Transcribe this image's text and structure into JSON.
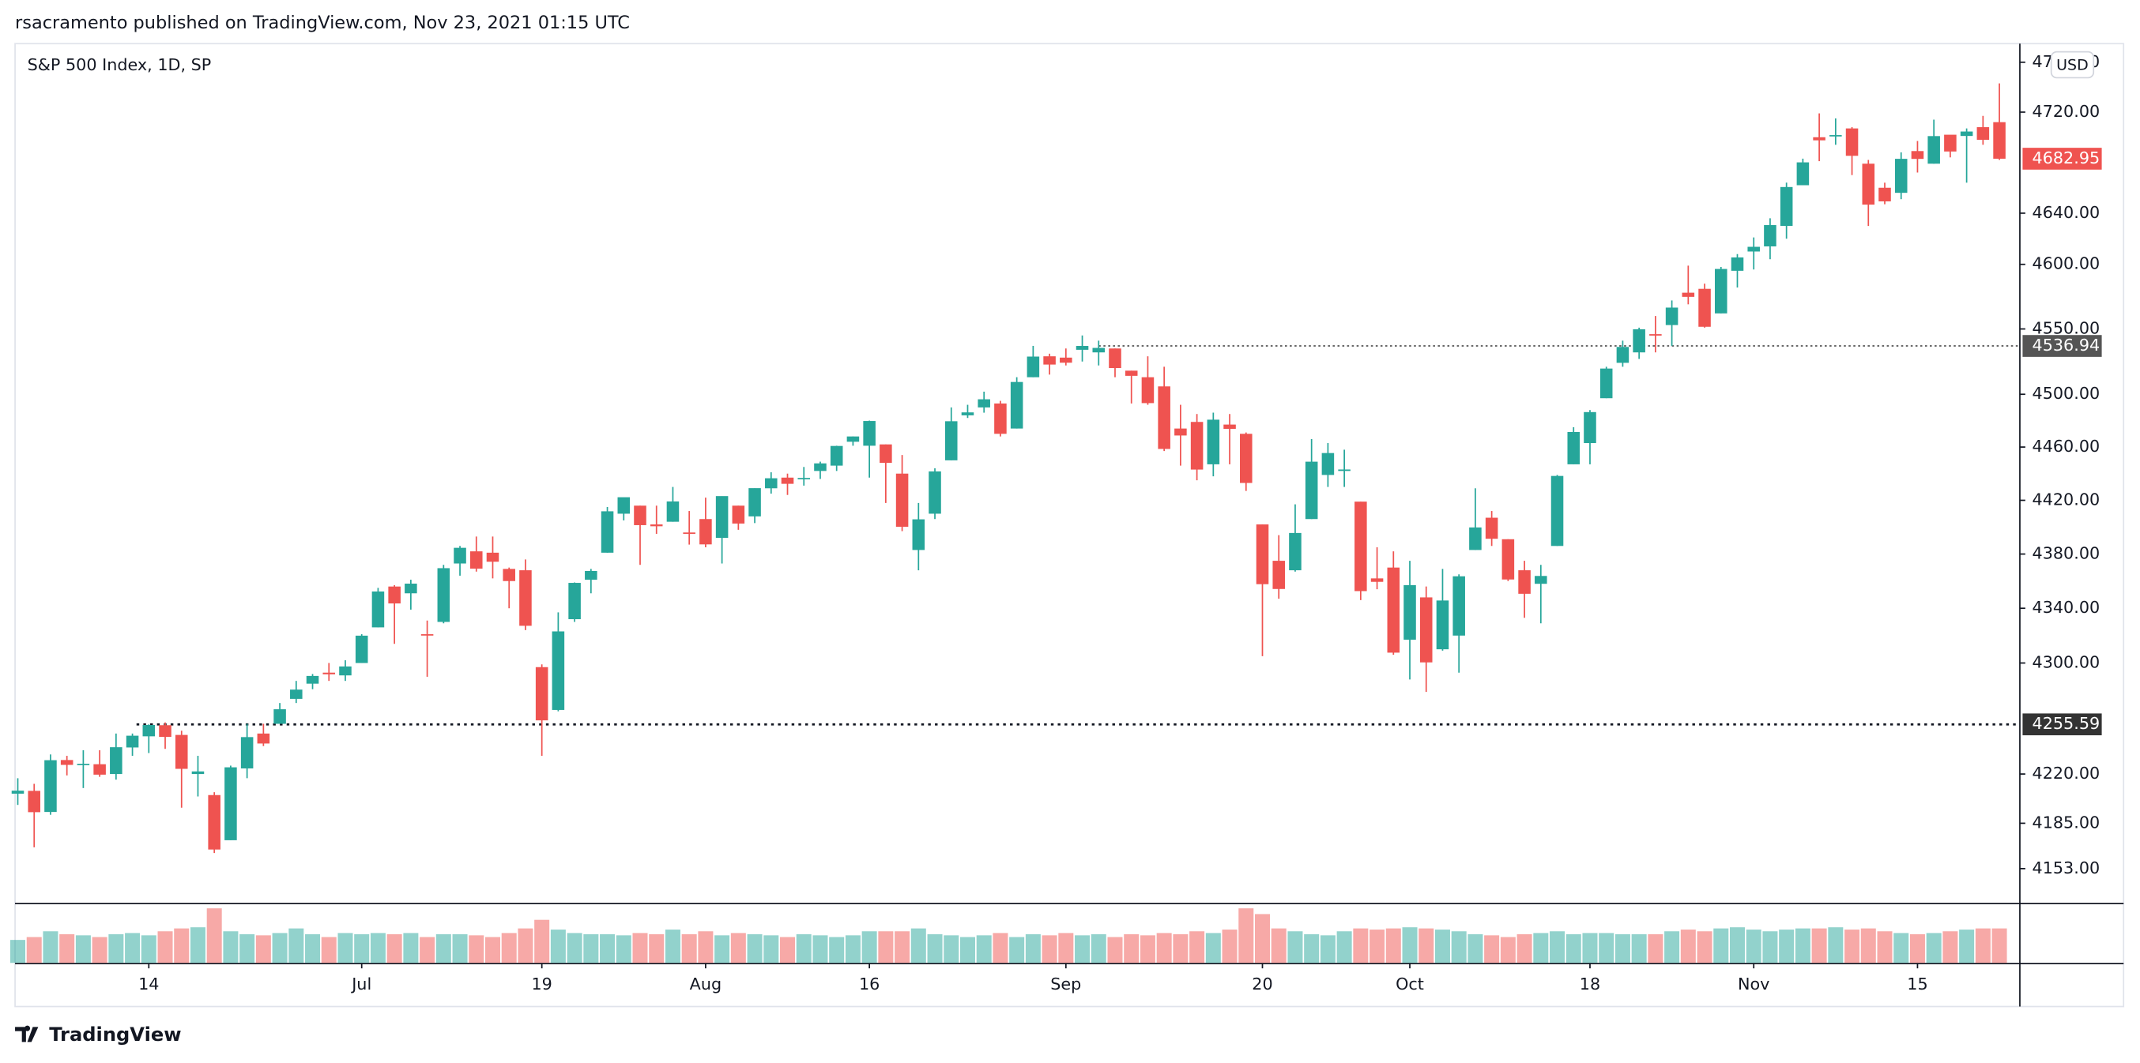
{
  "header": {
    "text": "rsacramento published on TradingView.com, Nov 23, 2021 01:15 UTC"
  },
  "footer": {
    "brand": "TradingView"
  },
  "chart_data": {
    "type": "candlestick",
    "title": "S&P 500 Index, 1D, SP",
    "currency": "USD",
    "log_scale": true,
    "up_color": "#26a69a",
    "down_color": "#ef5350",
    "ylim": [
      4129,
      4775
    ],
    "yticks": [
      {
        "value": 4760,
        "label": "4760.00"
      },
      {
        "value": 4720,
        "label": "4720.00"
      },
      {
        "value": 4640,
        "label": "4640.00"
      },
      {
        "value": 4600,
        "label": "4600.00"
      },
      {
        "value": 4550,
        "label": "4550.00"
      },
      {
        "value": 4500,
        "label": "4500.00"
      },
      {
        "value": 4460,
        "label": "4460.00"
      },
      {
        "value": 4420,
        "label": "4420.00"
      },
      {
        "value": 4380,
        "label": "4380.00"
      },
      {
        "value": 4340,
        "label": "4340.00"
      },
      {
        "value": 4300,
        "label": "4300.00"
      },
      {
        "value": 4220,
        "label": "4220.00"
      },
      {
        "value": 4185,
        "label": "4185.00"
      },
      {
        "value": 4153,
        "label": "4153.00"
      }
    ],
    "price_lines": [
      4536.94,
      4255.59
    ],
    "categories": [
      null,
      null,
      null,
      null,
      null,
      null,
      null,
      null,
      "14",
      null,
      null,
      null,
      null,
      null,
      null,
      null,
      null,
      null,
      null,
      null,
      null,
      "Jul",
      null,
      null,
      null,
      null,
      null,
      null,
      null,
      null,
      null,
      null,
      "19",
      null,
      null,
      null,
      null,
      null,
      null,
      null,
      null,
      null,
      "Aug",
      null,
      null,
      null,
      null,
      null,
      null,
      null,
      null,
      null,
      "16",
      null,
      null,
      null,
      null,
      null,
      null,
      null,
      null,
      null,
      null,
      null,
      "Sep",
      null,
      null,
      null,
      null,
      null,
      null,
      null,
      null,
      null,
      null,
      null,
      "20",
      null,
      null,
      null,
      null,
      null,
      null,
      null,
      null,
      "Oct",
      null,
      null,
      null,
      null,
      null,
      null,
      null,
      null,
      null,
      null,
      "18",
      null,
      null,
      null,
      null,
      null,
      null,
      null,
      null,
      null,
      "Nov",
      null,
      null,
      null,
      null,
      null,
      null,
      null,
      null,
      null,
      "15",
      null,
      null,
      null,
      null,
      null
    ],
    "open": [
      4206,
      4208,
      4193,
      4230,
      4227,
      4227,
      4220,
      4239,
      4247,
      4255,
      4248,
      4220,
      4205,
      4173,
      4224,
      4249,
      4256,
      4274,
      4285,
      4293,
      4291,
      4300,
      4326,
      4356,
      4351,
      4321,
      4330,
      4373,
      4382,
      4381,
      4369,
      4368,
      4297,
      4266,
      4332,
      4361,
      4381,
      4410,
      4416,
      4402,
      4404,
      4396,
      4406,
      4392,
      4416,
      4408,
      4429,
      4437,
      4436,
      4442,
      4446,
      4464,
      4461,
      4462,
      4440,
      4383,
      4410,
      4450,
      4484,
      4490,
      4493,
      4474,
      4513,
      4529,
      4528,
      4534,
      4532,
      4535,
      4518,
      4513,
      4506,
      4474,
      4479,
      4447,
      4477,
      4470,
      4402,
      4375,
      4368,
      4406,
      4439,
      4442,
      4419,
      4362,
      4370,
      4317,
      4348,
      4310,
      4320,
      4383,
      4407,
      4391,
      4368,
      4358,
      4386,
      4447,
      4463,
      4497,
      4524,
      4532,
      4546,
      4553,
      4578,
      4581,
      4562,
      4595,
      4610,
      4614,
      4630,
      4662,
      4700,
      4701,
      4707,
      4679,
      4660,
      4656,
      4689,
      4679,
      4702,
      4701,
      4708,
      4712
    ],
    "high": [
      4217,
      4213,
      4234,
      4233,
      4237,
      4237,
      4249,
      4249,
      4255.59,
      4257,
      4251,
      4233,
      4207,
      4226,
      4256,
      4256,
      4271,
      4287,
      4292,
      4300,
      4302,
      4321,
      4355,
      4357,
      4361,
      4331,
      4372,
      4386,
      4393,
      4393,
      4370,
      4376,
      4299,
      4337,
      4359,
      4369,
      4415,
      4422,
      4416,
      4416,
      4430,
      4412,
      4422,
      4423,
      4416,
      4429,
      4441,
      4440,
      4445,
      4449,
      4461,
      4468,
      4480,
      4462,
      4454,
      4418,
      4444,
      4490,
      4492,
      4502,
      4495,
      4513,
      4537,
      4531,
      4535,
      4545,
      4541,
      4535,
      4518,
      4529,
      4521,
      4492,
      4485,
      4486,
      4485,
      4471,
      4402,
      4394,
      4417,
      4466,
      4463,
      4458,
      4419,
      4385,
      4382,
      4375,
      4356,
      4369,
      4365,
      4429,
      4412,
      4391,
      4375,
      4372,
      4439,
      4475,
      4488,
      4521,
      4541,
      4551,
      4560,
      4572,
      4599,
      4585,
      4598,
      4608,
      4621,
      4636,
      4664,
      4683,
      4719,
      4715,
      4708,
      4682,
      4664,
      4688,
      4697,
      4714,
      4701,
      4707,
      4717,
      4743
    ],
    "low": [
      4198,
      4168,
      4191,
      4219,
      4210,
      4218,
      4216,
      4233,
      4235,
      4238,
      4196,
      4204,
      4164,
      4173,
      4217,
      4240,
      4256,
      4271,
      4281,
      4287,
      4287,
      4300,
      4326,
      4314,
      4339,
      4290,
      4329,
      4364,
      4367,
      4362,
      4340,
      4324,
      4233,
      4265,
      4330,
      4351,
      4381,
      4405,
      4372,
      4395,
      4404,
      4387,
      4385,
      4373,
      4398,
      4403,
      4425,
      4424,
      4431,
      4436,
      4442,
      4461,
      4437,
      4418,
      4397,
      4368,
      4406,
      4450,
      4482,
      4486,
      4468,
      4474,
      4513,
      4515,
      4522,
      4525,
      4522,
      4513,
      4493,
      4492,
      4457,
      4446,
      4435,
      4438,
      4447,
      4427,
      4305,
      4347,
      4367,
      4406,
      4430,
      4430,
      4346,
      4354,
      4306,
      4288,
      4279,
      4309,
      4293,
      4383,
      4386,
      4360,
      4333,
      4329,
      4386,
      4447,
      4447,
      4497,
      4521,
      4527,
      4532,
      4537,
      4569,
      4551,
      4562,
      4582,
      4596,
      4604,
      4620,
      4662,
      4681,
      4694,
      4670,
      4630,
      4647,
      4651,
      4672,
      4679,
      4684,
      4664,
      4694,
      4682
    ],
    "close": [
      4208.12,
      4192.85,
      4229.89,
      4226.52,
      4227.26,
      4219.55,
      4239.18,
      4247.44,
      4255.15,
      4246.59,
      4223.7,
      4221.86,
      4166.45,
      4224.79,
      4246.44,
      4241.84,
      4266.49,
      4280.7,
      4290.61,
      4291.8,
      4297.5,
      4319.94,
      4352.34,
      4343.54,
      4358.13,
      4320.82,
      4369.55,
      4384.63,
      4369.21,
      4374.3,
      4360.03,
      4327.16,
      4258.49,
      4323.06,
      4358.69,
      4367.48,
      4411.79,
      4422.3,
      4401.46,
      4400.64,
      4419.15,
      4395.26,
      4387.16,
      4423.15,
      4402.66,
      4429.1,
      4436.52,
      4432.35,
      4436.75,
      4447.7,
      4460.83,
      4468,
      4479.71,
      4448.08,
      4400.27,
      4405.8,
      4441.67,
      4479.53,
      4486.23,
      4496.19,
      4470,
      4509.37,
      4528.79,
      4522.68,
      4524.09,
      4536.95,
      4535.43,
      4520.03,
      4514.07,
      4493.28,
      4458.58,
      4468.73,
      4443.05,
      4480.7,
      4473.75,
      4432.99,
      4357.73,
      4354.19,
      4395.64,
      4448.98,
      4455.48,
      4443.11,
      4352.63,
      4359.46,
      4307.54,
      4357.04,
      4300.46,
      4345.72,
      4363.55,
      4399.76,
      4391.34,
      4361.19,
      4350.65,
      4363.8,
      4438.26,
      4471.37,
      4486.46,
      4519.63,
      4536.19,
      4549.78,
      4544.9,
      4566.48,
      4574.79,
      4551.68,
      4596.42,
      4605.38,
      4613.67,
      4630.65,
      4660.57,
      4680.06,
      4697.53,
      4701.7,
      4685.25,
      4646.71,
      4649.27,
      4682.85,
      4682.8,
      4700.9,
      4688.67,
      4704.54,
      4697.96,
      4682.95
    ],
    "volume": [
      40,
      45,
      55,
      50,
      48,
      45,
      50,
      52,
      48,
      55,
      60,
      62,
      95,
      55,
      50,
      48,
      52,
      60,
      50,
      45,
      52,
      50,
      52,
      50,
      52,
      45,
      50,
      50,
      48,
      45,
      52,
      60,
      75,
      58,
      52,
      50,
      50,
      48,
      52,
      50,
      58,
      50,
      55,
      48,
      52,
      50,
      48,
      45,
      50,
      48,
      45,
      48,
      55,
      55,
      55,
      60,
      50,
      48,
      45,
      48,
      52,
      45,
      50,
      48,
      52,
      48,
      50,
      45,
      50,
      48,
      52,
      50,
      55,
      52,
      58,
      95,
      85,
      60,
      55,
      50,
      48,
      55,
      60,
      58,
      60,
      62,
      60,
      58,
      55,
      50,
      48,
      45,
      50,
      52,
      55,
      50,
      52,
      52,
      50,
      50,
      50,
      55,
      58,
      55,
      60,
      62,
      58,
      55,
      58,
      60,
      60,
      62,
      58,
      60,
      55,
      52,
      50,
      52,
      55,
      58,
      60,
      60
    ]
  }
}
